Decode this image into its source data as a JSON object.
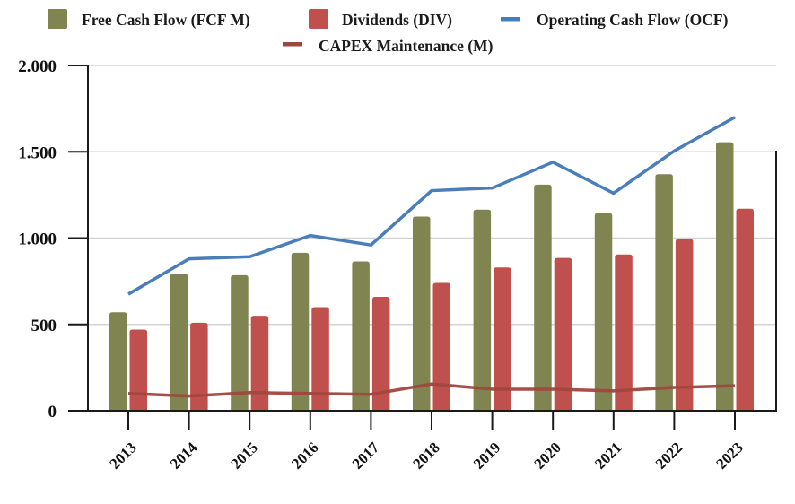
{
  "chart_data": {
    "type": "bar",
    "title": "",
    "xlabel": "",
    "ylabel": "",
    "categories": [
      "2013",
      "2014",
      "2015",
      "2016",
      "2017",
      "2018",
      "2019",
      "2020",
      "2021",
      "2022",
      "2023"
    ],
    "ylim": [
      0,
      2000
    ],
    "yticks": [
      0,
      500,
      1000,
      1500,
      2000
    ],
    "ytick_labels": [
      "0",
      "500",
      "1.000",
      "1.500",
      "2.000"
    ],
    "grid": true,
    "legend_position": "top-center",
    "series": [
      {
        "name": "Free Cash Flow (FCF M)",
        "kind": "bar",
        "color": "#7f8450",
        "values": [
          570,
          795,
          785,
          915,
          865,
          1125,
          1165,
          1310,
          1145,
          1370,
          1555
        ]
      },
      {
        "name": "Dividends (DIV)",
        "kind": "bar",
        "color": "#c0504d",
        "values": [
          470,
          510,
          550,
          600,
          660,
          740,
          830,
          885,
          905,
          995,
          1170
        ]
      },
      {
        "name": "Operating Cash Flow (OCF)",
        "kind": "line",
        "color": "#4a7ebb",
        "values": [
          675,
          880,
          892,
          1015,
          960,
          1275,
          1290,
          1440,
          1260,
          1505,
          1700
        ]
      },
      {
        "name": "CAPEX Maintenance (M)",
        "kind": "line",
        "color": "#a0473d",
        "values": [
          100,
          85,
          105,
          100,
          95,
          155,
          125,
          125,
          115,
          135,
          145
        ]
      }
    ]
  }
}
